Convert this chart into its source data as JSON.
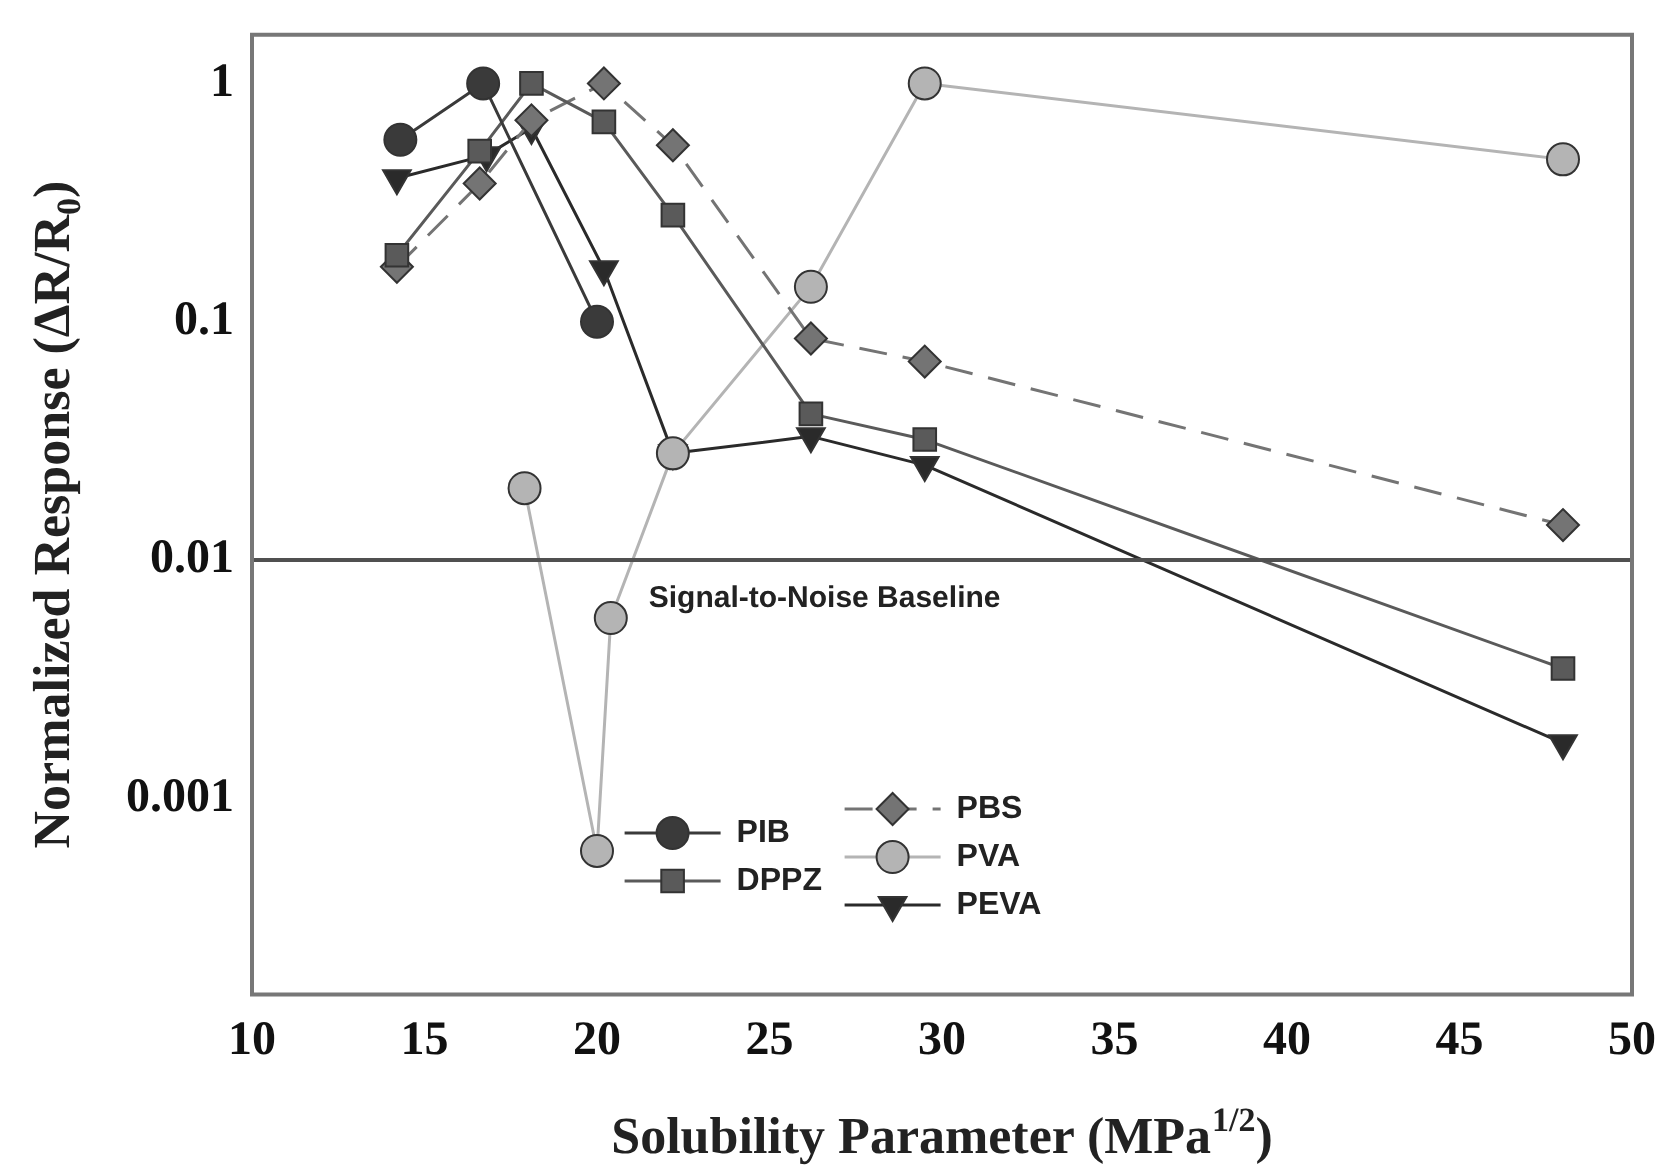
{
  "chart_data": {
    "type": "line",
    "xlabel": "Solubility Parameter (MPa$^{1/2}$)",
    "ylabel": "Normalized Response (ΔR/R$_{0}$)",
    "log": "y",
    "xlim": [
      10,
      50
    ],
    "xticks": [
      10,
      15,
      20,
      25,
      30,
      35,
      40,
      45,
      50
    ],
    "ylim": [
      0.00015,
      1.6
    ],
    "yticks": [
      0.001,
      0.01,
      0.1,
      1
    ],
    "grid": false,
    "legend": "bottom",
    "ref_lines": [
      {
        "axis": "y",
        "value": 0.01,
        "label": "Signal-to-Noise Baseline",
        "color": "#505050"
      }
    ],
    "series": [
      {
        "name": "PIB",
        "color": "#3a3a3a",
        "marker": "circle",
        "x": [
          14.3,
          16.7,
          20.0
        ],
        "values": [
          0.58,
          1.0,
          0.1
        ]
      },
      {
        "name": "DPPZ",
        "color": "#5a5a5a",
        "marker": "square",
        "x": [
          14.2,
          16.6,
          18.1,
          20.2,
          22.2,
          26.2,
          29.5,
          48
        ],
        "values": [
          0.19,
          0.52,
          1.0,
          0.69,
          0.28,
          0.041,
          0.032,
          0.0035
        ]
      },
      {
        "name": "PBS",
        "color": "#747474",
        "marker": "diamond",
        "line_style": "dashed",
        "x": [
          14.2,
          16.6,
          18.1,
          20.2,
          22.2,
          26.2,
          29.5,
          48
        ],
        "values": [
          0.17,
          0.38,
          0.7,
          1.0,
          0.55,
          0.085,
          0.068,
          0.014
        ]
      },
      {
        "name": "PVA",
        "color": "#b4b4b4",
        "marker": "circle",
        "x": [
          17.9,
          20.0,
          20.4,
          22.2,
          26.2,
          29.5,
          48
        ],
        "values": [
          0.02,
          0.0006,
          0.0057,
          0.028,
          0.14,
          1.0,
          0.48
        ]
      },
      {
        "name": "PEVA",
        "color": "#2a2a2a",
        "marker": "triangle",
        "x": [
          14.2,
          16.8,
          18.1,
          20.2,
          22.2,
          26.2,
          29.5,
          48
        ],
        "values": [
          0.4,
          0.5,
          0.65,
          0.166,
          0.028,
          0.033,
          0.025,
          0.0017
        ]
      }
    ]
  }
}
